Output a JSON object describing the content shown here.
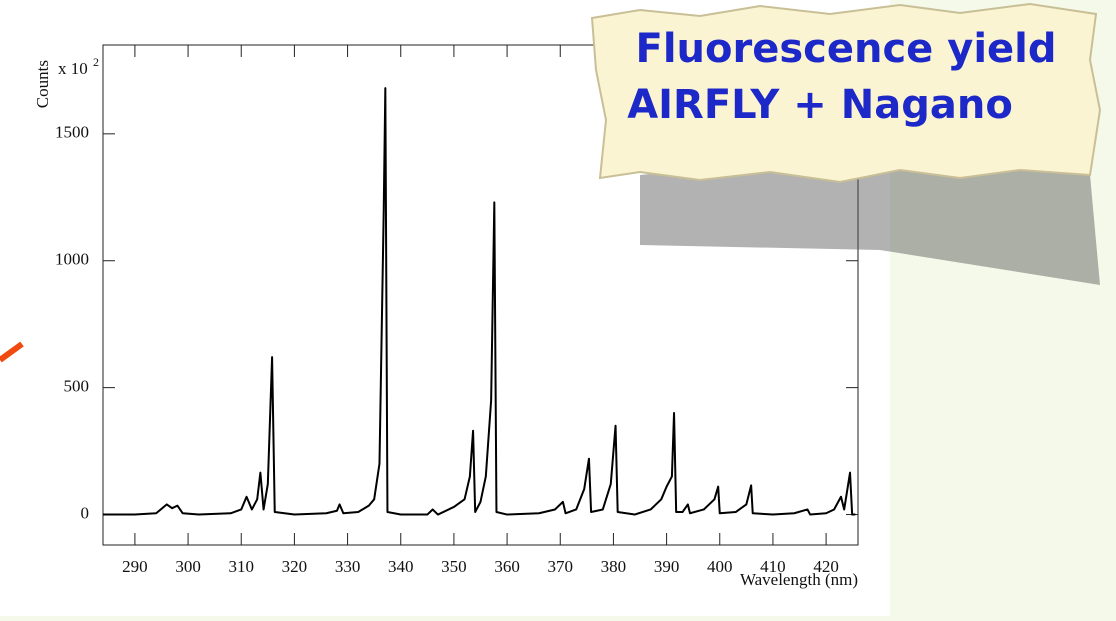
{
  "chart_data": {
    "type": "line",
    "title_lines": [
      "Fluorescence yield",
      "AIRFLY + Nagano"
    ],
    "y_label": "Counts",
    "y_multiplier": "x 10",
    "y_multiplier_exponent": "2",
    "x_label": "Wavelength (nm)",
    "color": "#000000",
    "x": [
      284,
      290,
      294,
      296,
      297,
      298,
      299,
      302,
      308,
      310,
      311,
      312,
      313,
      313.6,
      314.2,
      315,
      315.8,
      316.3,
      320,
      326,
      328,
      328.5,
      329.2,
      332,
      334,
      335,
      336,
      336.8,
      337.1,
      337.5,
      340,
      345,
      346,
      347,
      350,
      352,
      353,
      353.6,
      354,
      355,
      356,
      357,
      357.6,
      358,
      360,
      366,
      369,
      370.5,
      371,
      373,
      374.5,
      375.4,
      375.8,
      378,
      379.5,
      380.4,
      380.8,
      384,
      387,
      389,
      390,
      391,
      391.4,
      391.8,
      393,
      394,
      394.4,
      397,
      399,
      399.7,
      400,
      403,
      405,
      405.9,
      406.2,
      410,
      414,
      416.5,
      417,
      420,
      421.5,
      422.8,
      423.4,
      424.5,
      424.9,
      425.5
    ],
    "values": [
      0,
      0,
      5,
      40,
      25,
      35,
      5,
      0,
      5,
      20,
      70,
      20,
      60,
      165,
      20,
      120,
      620,
      10,
      0,
      5,
      15,
      40,
      5,
      10,
      35,
      60,
      200,
      1200,
      1680,
      10,
      0,
      0,
      20,
      0,
      30,
      60,
      150,
      330,
      10,
      50,
      150,
      450,
      1230,
      10,
      0,
      5,
      20,
      50,
      5,
      20,
      100,
      220,
      10,
      20,
      120,
      350,
      10,
      0,
      20,
      60,
      110,
      150,
      400,
      10,
      10,
      40,
      5,
      20,
      60,
      110,
      5,
      10,
      40,
      115,
      5,
      0,
      5,
      20,
      0,
      5,
      20,
      70,
      20,
      165,
      0,
      0
    ],
    "xlim": [
      284,
      426
    ],
    "ylim": [
      -120,
      1850
    ],
    "xticks": [
      290,
      300,
      310,
      320,
      330,
      340,
      350,
      360,
      370,
      380,
      390,
      400,
      410,
      420
    ],
    "yticks": [
      0,
      500,
      1000,
      1500
    ]
  }
}
